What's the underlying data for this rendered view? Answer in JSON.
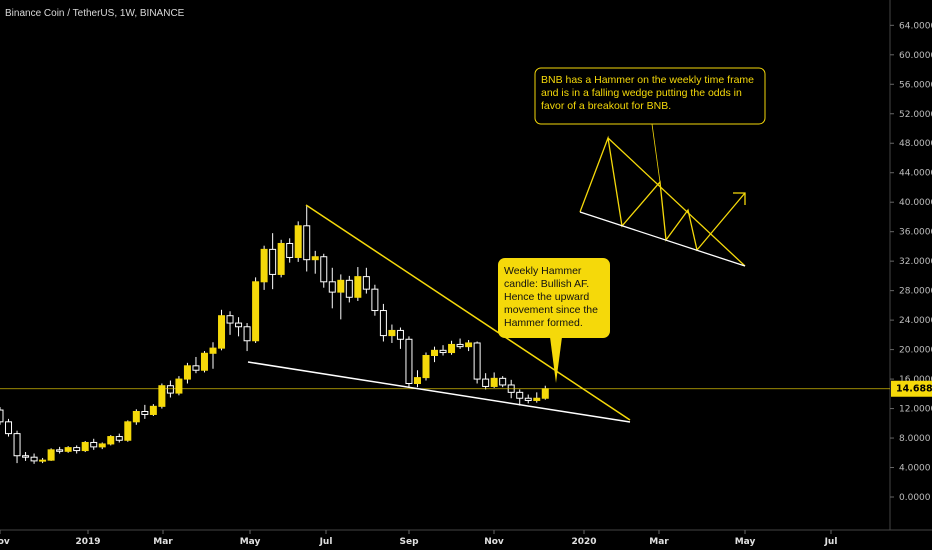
{
  "header": {
    "title": "Binance Coin / TetherUS, 1W, BINANCE"
  },
  "chart_data": {
    "type": "candlestick",
    "price_axis": {
      "ticks": [
        "64.0000",
        "60.0000",
        "56.0000",
        "52.0000",
        "48.0000",
        "44.0000",
        "40.0000",
        "36.0000",
        "32.0000",
        "28.0000",
        "24.0000",
        "20.0000",
        "16.0000",
        "12.0000",
        "8.0000",
        "4.0000",
        "0.0000"
      ],
      "ylim": [
        -2,
        66
      ]
    },
    "time_axis": {
      "labels": [
        "Nov",
        "2019",
        "Mar",
        "May",
        "Jul",
        "Sep",
        "Nov",
        "2020",
        "Mar",
        "May",
        "Jul"
      ]
    },
    "current_price": {
      "label": "14.6888",
      "value": 14.6888
    },
    "colors": {
      "up": "#f5d90a",
      "down": "#000000",
      "outline": "#ffffff",
      "trend": "#f5d90a",
      "support": "#ffffff",
      "background": "#000000"
    },
    "candles": [
      {
        "o": 11.8,
        "h": 12.2,
        "l": 9.8,
        "c": 10.2
      },
      {
        "o": 10.2,
        "h": 10.6,
        "l": 8.2,
        "c": 8.6
      },
      {
        "o": 8.6,
        "h": 9.0,
        "l": 4.6,
        "c": 5.6
      },
      {
        "o": 5.6,
        "h": 6.1,
        "l": 4.9,
        "c": 5.4
      },
      {
        "o": 5.4,
        "h": 5.9,
        "l": 4.5,
        "c": 4.9
      },
      {
        "o": 4.9,
        "h": 5.3,
        "l": 4.6,
        "c": 5.0
      },
      {
        "o": 5.0,
        "h": 6.6,
        "l": 4.9,
        "c": 6.4
      },
      {
        "o": 6.4,
        "h": 6.8,
        "l": 5.9,
        "c": 6.2
      },
      {
        "o": 6.2,
        "h": 6.9,
        "l": 6.0,
        "c": 6.7
      },
      {
        "o": 6.7,
        "h": 7.0,
        "l": 5.9,
        "c": 6.3
      },
      {
        "o": 6.3,
        "h": 7.6,
        "l": 6.1,
        "c": 7.4
      },
      {
        "o": 7.4,
        "h": 7.9,
        "l": 6.4,
        "c": 6.8
      },
      {
        "o": 6.8,
        "h": 7.4,
        "l": 6.5,
        "c": 7.2
      },
      {
        "o": 7.2,
        "h": 8.4,
        "l": 7.0,
        "c": 8.2
      },
      {
        "o": 8.2,
        "h": 8.6,
        "l": 7.4,
        "c": 7.7
      },
      {
        "o": 7.7,
        "h": 10.4,
        "l": 7.5,
        "c": 10.2
      },
      {
        "o": 10.2,
        "h": 11.9,
        "l": 9.8,
        "c": 11.6
      },
      {
        "o": 11.6,
        "h": 12.5,
        "l": 10.6,
        "c": 11.2
      },
      {
        "o": 11.2,
        "h": 12.6,
        "l": 11.0,
        "c": 12.3
      },
      {
        "o": 12.3,
        "h": 15.4,
        "l": 12.0,
        "c": 15.1
      },
      {
        "o": 15.1,
        "h": 15.8,
        "l": 13.5,
        "c": 14.1
      },
      {
        "o": 14.1,
        "h": 16.4,
        "l": 13.8,
        "c": 16.0
      },
      {
        "o": 16.0,
        "h": 18.2,
        "l": 15.4,
        "c": 17.8
      },
      {
        "o": 17.8,
        "h": 19.0,
        "l": 16.8,
        "c": 17.2
      },
      {
        "o": 17.2,
        "h": 19.8,
        "l": 16.9,
        "c": 19.5
      },
      {
        "o": 19.5,
        "h": 21.0,
        "l": 17.4,
        "c": 20.2
      },
      {
        "o": 20.2,
        "h": 25.4,
        "l": 19.9,
        "c": 24.6
      },
      {
        "o": 24.6,
        "h": 25.2,
        "l": 22.0,
        "c": 23.6
      },
      {
        "o": 23.6,
        "h": 24.4,
        "l": 21.8,
        "c": 23.1
      },
      {
        "o": 23.1,
        "h": 23.6,
        "l": 19.8,
        "c": 21.2
      },
      {
        "o": 21.2,
        "h": 29.8,
        "l": 20.9,
        "c": 29.2
      },
      {
        "o": 29.2,
        "h": 34.1,
        "l": 28.1,
        "c": 33.6
      },
      {
        "o": 33.6,
        "h": 35.8,
        "l": 28.2,
        "c": 30.2
      },
      {
        "o": 30.2,
        "h": 34.9,
        "l": 29.8,
        "c": 34.4
      },
      {
        "o": 34.4,
        "h": 35.1,
        "l": 31.8,
        "c": 32.5
      },
      {
        "o": 32.5,
        "h": 37.4,
        "l": 31.9,
        "c": 36.8
      },
      {
        "o": 36.8,
        "h": 39.6,
        "l": 30.6,
        "c": 32.2
      },
      {
        "o": 32.2,
        "h": 33.4,
        "l": 30.3,
        "c": 32.6
      },
      {
        "o": 32.6,
        "h": 33.0,
        "l": 28.4,
        "c": 29.2
      },
      {
        "o": 29.2,
        "h": 31.1,
        "l": 25.6,
        "c": 27.8
      },
      {
        "o": 27.8,
        "h": 30.2,
        "l": 24.1,
        "c": 29.4
      },
      {
        "o": 29.4,
        "h": 30.0,
        "l": 26.4,
        "c": 27.1
      },
      {
        "o": 27.1,
        "h": 31.2,
        "l": 26.6,
        "c": 29.9
      },
      {
        "o": 29.9,
        "h": 31.1,
        "l": 27.6,
        "c": 28.2
      },
      {
        "o": 28.2,
        "h": 28.8,
        "l": 24.6,
        "c": 25.3
      },
      {
        "o": 25.3,
        "h": 26.2,
        "l": 21.1,
        "c": 21.9
      },
      {
        "o": 21.9,
        "h": 23.4,
        "l": 20.9,
        "c": 22.6
      },
      {
        "o": 22.6,
        "h": 23.0,
        "l": 20.1,
        "c": 21.4
      },
      {
        "o": 21.4,
        "h": 21.8,
        "l": 14.8,
        "c": 15.4
      },
      {
        "o": 15.4,
        "h": 17.2,
        "l": 14.9,
        "c": 16.2
      },
      {
        "o": 16.2,
        "h": 19.6,
        "l": 15.8,
        "c": 19.2
      },
      {
        "o": 19.2,
        "h": 20.4,
        "l": 18.3,
        "c": 19.9
      },
      {
        "o": 19.9,
        "h": 20.6,
        "l": 19.2,
        "c": 19.6
      },
      {
        "o": 19.6,
        "h": 21.2,
        "l": 19.3,
        "c": 20.7
      },
      {
        "o": 20.7,
        "h": 21.5,
        "l": 20.1,
        "c": 20.4
      },
      {
        "o": 20.4,
        "h": 21.3,
        "l": 19.8,
        "c": 20.9
      },
      {
        "o": 20.9,
        "h": 21.1,
        "l": 15.4,
        "c": 16.0
      },
      {
        "o": 16.0,
        "h": 16.8,
        "l": 14.6,
        "c": 15.0
      },
      {
        "o": 15.0,
        "h": 16.9,
        "l": 14.8,
        "c": 16.1
      },
      {
        "o": 16.1,
        "h": 16.4,
        "l": 14.9,
        "c": 15.2
      },
      {
        "o": 15.2,
        "h": 15.9,
        "l": 13.4,
        "c": 14.2
      },
      {
        "o": 14.2,
        "h": 14.6,
        "l": 12.4,
        "c": 13.4
      },
      {
        "o": 13.4,
        "h": 13.9,
        "l": 12.7,
        "c": 13.1
      },
      {
        "o": 13.1,
        "h": 14.2,
        "l": 12.8,
        "c": 13.4
      },
      {
        "o": 13.4,
        "h": 15.1,
        "l": 13.2,
        "c": 14.69
      }
    ],
    "annotations": [
      {
        "id": "hammer-note",
        "lines": [
          "Weekly Hammer",
          "candle: Bullish AF.",
          "Hence the upward",
          "movement since the",
          "Hammer formed."
        ]
      },
      {
        "id": "wedge-note",
        "lines": [
          "BNB has a Hammer on the weekly time frame",
          "and is in a falling wedge putting the odds in",
          "favor of  a breakout for BNB."
        ]
      }
    ]
  }
}
